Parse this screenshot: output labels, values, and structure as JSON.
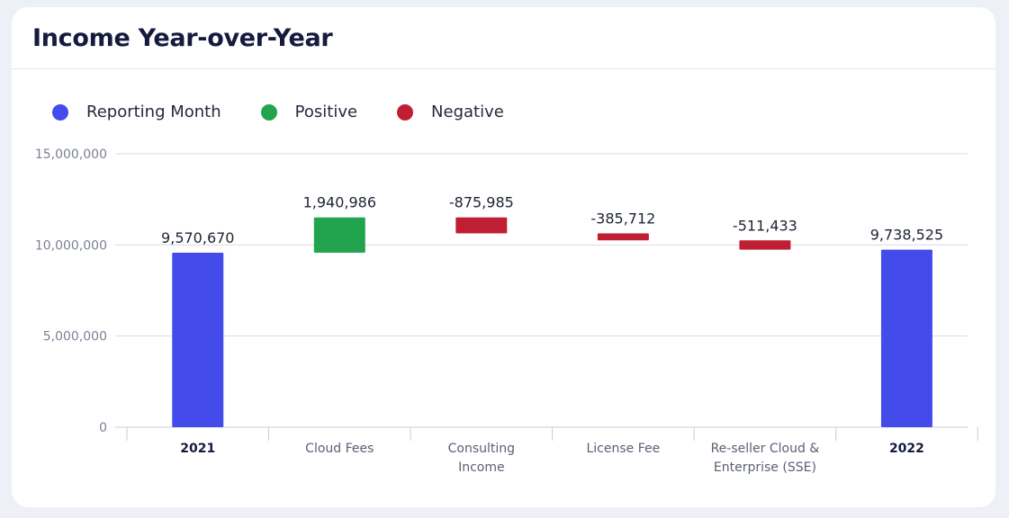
{
  "card": {
    "title": "Income Year-over-Year"
  },
  "legend": [
    {
      "label": "Reporting Month",
      "color": "#434cea"
    },
    {
      "label": "Positive",
      "color": "#22a44e"
    },
    {
      "label": "Negative",
      "color": "#c01f33"
    }
  ],
  "chart_data": {
    "type": "bar",
    "subtype": "waterfall",
    "title": "Income Year-over-Year",
    "categories": [
      "2021",
      "Cloud Fees",
      "Consulting Income",
      "License Fee",
      "Re-seller Cloud & Enterprise (SSE)",
      "2022"
    ],
    "category_lines": [
      [
        "2021"
      ],
      [
        "Cloud Fees"
      ],
      [
        "Consulting",
        "Income"
      ],
      [
        "License Fee"
      ],
      [
        "Re-seller Cloud &",
        "Enterprise (SSE)"
      ],
      [
        "2022"
      ]
    ],
    "bold_categories": [
      "2021",
      "2022"
    ],
    "values": [
      9570670,
      1940986,
      -875985,
      -385712,
      -511433,
      9738525
    ],
    "labels": [
      "9,570,670",
      "1,940,986",
      "-875,985",
      "-385,712",
      "-511,433",
      "9,738,525"
    ],
    "kinds": [
      "total",
      "positive",
      "negative",
      "negative",
      "negative",
      "total"
    ],
    "colors": {
      "total": "#434cea",
      "positive": "#22a44e",
      "negative": "#c01f33"
    },
    "yticks": [
      0,
      5000000,
      10000000,
      15000000
    ],
    "ytick_labels": [
      "0",
      "5,000,000",
      "10,000,000",
      "15,000,000"
    ],
    "ylim": [
      0,
      15000000
    ],
    "grid": true,
    "legend_position": "top-left"
  }
}
